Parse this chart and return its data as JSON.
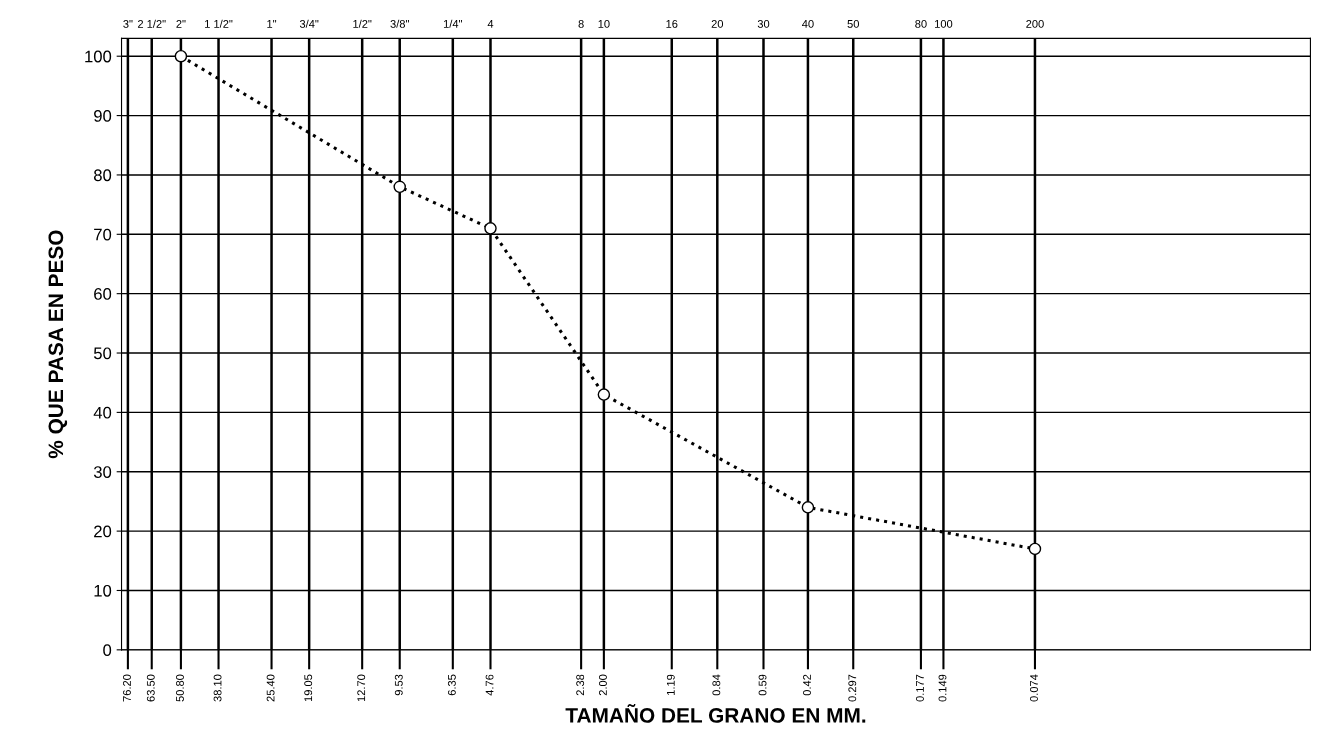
{
  "chart_data": {
    "type": "line",
    "xlabel": "TAMAÑO DEL GRANO EN MM.",
    "ylabel": "% QUE PASA EN PESO",
    "log": "x",
    "x": [
      50.8,
      9.53,
      4.76,
      2.0,
      0.42,
      0.074
    ],
    "series": [
      {
        "color": "#000000",
        "values": [
          100,
          78,
          71,
          43,
          24,
          17
        ]
      }
    ],
    "marker": "circle",
    "line_style": "dotted",
    "xlim": [
      80,
      0.009
    ],
    "xticks": [
      {
        "value": 76.2,
        "label": "76.20"
      },
      {
        "value": 63.5,
        "label": "63.50"
      },
      {
        "value": 50.8,
        "label": "50.80"
      },
      {
        "value": 38.1,
        "label": "38.10"
      },
      {
        "value": 25.4,
        "label": "25.40"
      },
      {
        "value": 19.05,
        "label": "19.05"
      },
      {
        "value": 12.7,
        "label": "12.70"
      },
      {
        "value": 9.53,
        "label": "9.53"
      },
      {
        "value": 6.35,
        "label": "6.35"
      },
      {
        "value": 4.76,
        "label": "4.76"
      },
      {
        "value": 2.38,
        "label": "2.38"
      },
      {
        "value": 2.0,
        "label": "2.00"
      },
      {
        "value": 1.19,
        "label": "1.19"
      },
      {
        "value": 0.84,
        "label": "0.84"
      },
      {
        "value": 0.59,
        "label": "0.59"
      },
      {
        "value": 0.42,
        "label": "0.42"
      },
      {
        "value": 0.297,
        "label": "0.297"
      },
      {
        "value": 0.177,
        "label": "0.177"
      },
      {
        "value": 0.149,
        "label": "0.149"
      },
      {
        "value": 0.074,
        "label": "0.074"
      }
    ],
    "annotations": [
      "3\"",
      "2 1/2\"",
      "2\"",
      "1 1/2\"",
      "1\"",
      "3/4\"",
      "1/2\"",
      "3/8\"",
      "1/4\"",
      "4",
      "8",
      "10",
      "16",
      "20",
      "30",
      "40",
      "50",
      "80",
      "100",
      "200"
    ],
    "ylim": [
      0,
      103
    ],
    "yticks": [
      0,
      10,
      20,
      30,
      40,
      50,
      60,
      70,
      80,
      90,
      100
    ],
    "grid": true
  }
}
